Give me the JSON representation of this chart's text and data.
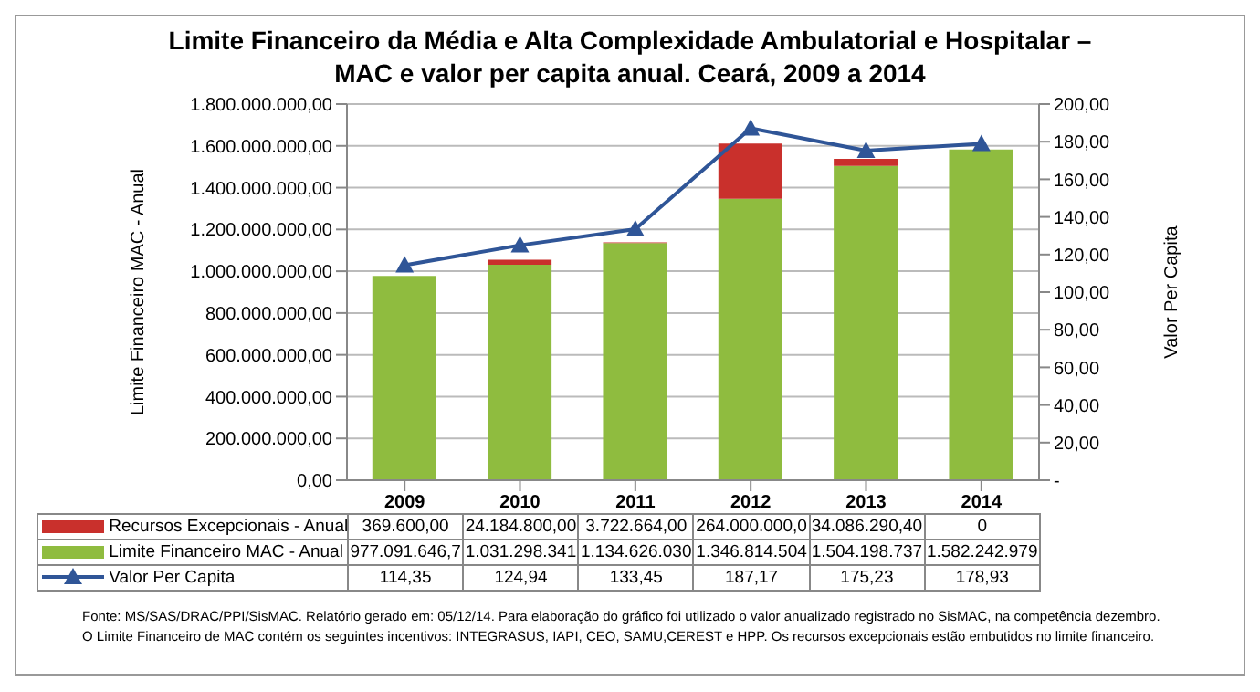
{
  "chart_data": {
    "type": "bar",
    "stacked": true,
    "title": "Limite Financeiro da Média e Alta Complexidade Ambulatorial e Hospitalar – MAC e valor per capita anual. Ceará, 2009 a 2014",
    "categories": [
      "2009",
      "2010",
      "2011",
      "2012",
      "2013",
      "2014"
    ],
    "series": [
      {
        "name": "Limite Financeiro MAC - Anual",
        "color": "#8fbc3f",
        "values": [
          977091646.7,
          1031298341,
          1134626030,
          1346814504,
          1504198737,
          1582242979
        ],
        "value_labels": [
          "977.091.646,7",
          "1.031.298.341",
          "1.134.626.030",
          "1.346.814.504",
          "1.504.198.737",
          "1.582.242.979"
        ]
      },
      {
        "name": "Recursos Excepcionais - Anual",
        "color": "#c9302c",
        "values": [
          369600,
          24184800,
          3722664,
          264000000,
          34086290.4,
          0
        ],
        "value_labels": [
          "369.600,00",
          "24.184.800,00",
          "3.722.664,00",
          "264.000.000,0",
          "34.086.290,40",
          "0"
        ]
      },
      {
        "name": "Valor Per Capita",
        "type": "line",
        "axis": "y2",
        "color": "#2f5597",
        "marker": "triangle",
        "values": [
          114.35,
          124.94,
          133.45,
          187.17,
          175.23,
          178.93
        ],
        "value_labels": [
          "114,35",
          "124,94",
          "133,45",
          "187,17",
          "175,23",
          "178,93"
        ]
      }
    ],
    "ylabel": "Limite Financeiro MAC - Anual",
    "y2label": "Valor Per Capita",
    "ylim": [
      0,
      1800000000
    ],
    "yticks": [
      {
        "value": 0,
        "label": "0,00"
      },
      {
        "value": 200000000,
        "label": "200.000.000,00"
      },
      {
        "value": 400000000,
        "label": "400.000.000,00"
      },
      {
        "value": 600000000,
        "label": "600.000.000,00"
      },
      {
        "value": 800000000,
        "label": "800.000.000,00"
      },
      {
        "value": 1000000000,
        "label": "1.000.000.000,00"
      },
      {
        "value": 1200000000,
        "label": "1.200.000.000,00"
      },
      {
        "value": 1400000000,
        "label": "1.400.000.000,00"
      },
      {
        "value": 1600000000,
        "label": "1.600.000.000,00"
      },
      {
        "value": 1800000000,
        "label": "1.800.000.000,00"
      }
    ],
    "y2lim": [
      0,
      200
    ],
    "y2ticks": [
      {
        "value": 0,
        "label": "-"
      },
      {
        "value": 20,
        "label": "20,00"
      },
      {
        "value": 40,
        "label": "40,00"
      },
      {
        "value": 60,
        "label": "60,00"
      },
      {
        "value": 80,
        "label": "80,00"
      },
      {
        "value": 100,
        "label": "100,00"
      },
      {
        "value": 120,
        "label": "120,00"
      },
      {
        "value": 140,
        "label": "140,00"
      },
      {
        "value": 160,
        "label": "160,00"
      },
      {
        "value": 180,
        "label": "180,00"
      },
      {
        "value": 200,
        "label": "200,00"
      }
    ],
    "grid": "y",
    "legend": "bottom",
    "line_style": "solid",
    "annotations": [
      "Fonte: MS/SAS/DRAC/PPI/SisMAC. Relatório gerado em: 05/12/14. Para elaboração do gráfico foi utilizado o valor anualizado registrado no SisMAC, na competência dezembro.",
      "O Limite Financeiro de MAC contém os seguintes incentivos: INTEGRASUS, IAPI, CEO, SAMU,CEREST e HPP. Os recursos excepcionais estão embutidos no limite financeiro."
    ]
  }
}
